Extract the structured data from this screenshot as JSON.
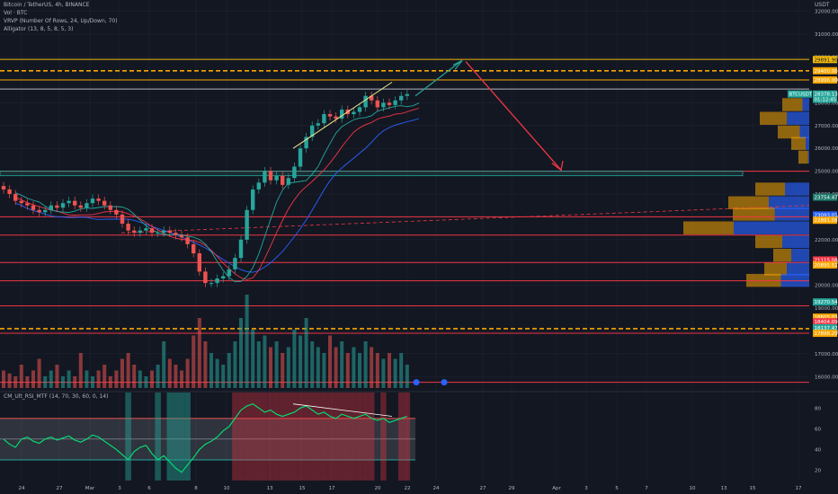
{
  "legend": {
    "symbol": "Bitcoin / TetherUS, 4h, BINANCE",
    "volume": "Vol · BTC",
    "vrvp": "VRVP (Number Of Rows, 24, Up/Down, 70)",
    "alligator": "Alligator (13, 8, 5, 8, 5, 3)",
    "rsi_indicator": "CM_Ult_RSI_MTF (14, 70, 30, 60, 0, 14)"
  },
  "currency": "USDT",
  "price_axis": [
    "32000.00",
    "31000.00",
    "30000.00",
    "29000.00",
    "28000.00",
    "27000.00",
    "26000.00",
    "25000.00",
    "24000.00",
    "23000.00",
    "22000.00",
    "21000.00",
    "20000.00",
    "19000.00",
    "18000.00",
    "17000.00",
    "16000.00"
  ],
  "rsi_axis": [
    "80",
    "60",
    "40",
    "20"
  ],
  "date_axis": [
    "24",
    "27",
    "Mar",
    "3",
    "6",
    "8",
    "10",
    "13",
    "15",
    "17",
    "20",
    "22",
    "24",
    "27",
    "29",
    "Apr",
    "3",
    "5",
    "7",
    "10",
    "13",
    "15",
    "17"
  ],
  "price_tags": [
    {
      "text": "29891.90",
      "price": 29891.9,
      "color": "#f0b90b",
      "dark": true
    },
    {
      "text": "29400.00",
      "price": 29400,
      "color": "#f7a600"
    },
    {
      "text": "28996.00",
      "price": 28996,
      "color": "#f7a600"
    },
    {
      "text": "BTCUSDT",
      "price": 28380,
      "color": "#26a69a"
    },
    {
      "text": "28378.13",
      "price": 28378.13,
      "color": "#26a69a"
    },
    {
      "text": "01:12:45",
      "price": 28150,
      "color": "#26a69a"
    },
    {
      "text": "23754.47",
      "price": 23860,
      "color": "#1e7b6d"
    },
    {
      "text": "23093.01",
      "price": 23080,
      "color": "#2962ff"
    },
    {
      "text": "22891.08",
      "price": 22850,
      "color": "#f7a600"
    },
    {
      "text": "21115.08",
      "price": 21110,
      "color": "#f23645"
    },
    {
      "text": "20895.51",
      "price": 20890,
      "color": "#f7a600"
    },
    {
      "text": "19270.54",
      "price": 19270,
      "color": "#26a69a"
    },
    {
      "text": "18605.03",
      "price": 18605,
      "color": "#f7a600"
    },
    {
      "text": "18404.09",
      "price": 18404,
      "color": "#f23645"
    },
    {
      "text": "18137.47",
      "price": 18137,
      "color": "#26a69a"
    },
    {
      "text": "17898.29",
      "price": 17898,
      "color": "#f7a600"
    }
  ],
  "levels": [
    {
      "price": 29900,
      "color": "#f0b90b",
      "style": "solid"
    },
    {
      "price": 29400,
      "color": "#f7a600",
      "style": "dashed"
    },
    {
      "price": 29000,
      "color": "#f7a600",
      "style": "solid"
    },
    {
      "price": 28600,
      "color": "#b2b5be",
      "style": "solid"
    },
    {
      "price": 25000,
      "color": "#f23645",
      "style": "solid"
    },
    {
      "price": 23000,
      "color": "#f23645",
      "style": "solid"
    },
    {
      "price": 22200,
      "color": "#f23645",
      "style": "solid"
    },
    {
      "price": 21000,
      "color": "#f23645",
      "style": "solid"
    },
    {
      "price": 20200,
      "color": "#f23645",
      "style": "solid"
    },
    {
      "price": 19100,
      "color": "#f23645",
      "style": "solid"
    },
    {
      "price": 18100,
      "color": "#f7a600",
      "style": "dashed"
    },
    {
      "price": 17900,
      "color": "#f23645",
      "style": "solid"
    },
    {
      "price": 15750,
      "color": "#f23645",
      "style": "solid"
    }
  ],
  "colors": {
    "up": "#26a69a",
    "down": "#ef5350",
    "bg": "#131722",
    "grid": "#1f2433"
  },
  "chart_data": {
    "type": "candlestick",
    "interval": "4h",
    "ylim": [
      15500,
      32500
    ],
    "series": [
      {
        "name": "price_close",
        "values": [
          24200,
          24000,
          23700,
          23600,
          23500,
          23300,
          23200,
          23300,
          23500,
          23400,
          23600,
          23700,
          23500,
          23400,
          23600,
          23800,
          23700,
          23500,
          23300,
          23100,
          22700,
          22400,
          22300,
          22400,
          22500,
          22300,
          22300,
          22400,
          22300,
          22200,
          22100,
          21800,
          21400,
          20600,
          20100,
          20100,
          20300,
          20400,
          20700,
          21200,
          22000,
          23300,
          24200,
          24500,
          25000,
          24600,
          24800,
          24400,
          24700,
          25200,
          26000,
          26500,
          27000,
          27100,
          27500,
          27400,
          27300,
          27700,
          27500,
          27600,
          27800,
          28300,
          28100,
          27800,
          28000,
          27900,
          28100,
          28300,
          28378
        ]
      }
    ],
    "rsi": [
      50,
      45,
      42,
      50,
      52,
      48,
      46,
      50,
      52,
      49,
      51,
      53,
      49,
      47,
      50,
      54,
      52,
      48,
      44,
      40,
      35,
      30,
      38,
      42,
      44,
      36,
      30,
      34,
      28,
      22,
      18,
      25,
      32,
      40,
      45,
      48,
      52,
      58,
      62,
      70,
      78,
      82,
      84,
      80,
      76,
      78,
      74,
      72,
      74,
      76,
      80,
      82,
      78,
      74,
      76,
      72,
      70,
      74,
      72,
      70,
      72,
      74,
      70,
      68,
      70,
      66,
      68,
      70,
      72
    ],
    "volume": [
      3,
      2.5,
      2,
      4,
      2,
      3,
      5,
      2,
      3,
      4,
      2,
      3,
      2,
      6,
      3,
      2,
      3,
      4,
      2,
      3,
      5,
      6,
      4,
      3,
      2,
      3,
      4,
      8,
      5,
      4,
      3,
      5,
      9,
      12,
      8,
      6,
      5,
      4,
      6,
      8,
      12,
      16,
      10,
      8,
      9,
      7,
      8,
      6,
      7,
      10,
      9,
      12,
      8,
      7,
      6,
      9,
      7,
      8,
      6,
      7,
      6,
      8,
      7,
      6,
      5,
      6,
      5,
      6,
      4
    ]
  }
}
